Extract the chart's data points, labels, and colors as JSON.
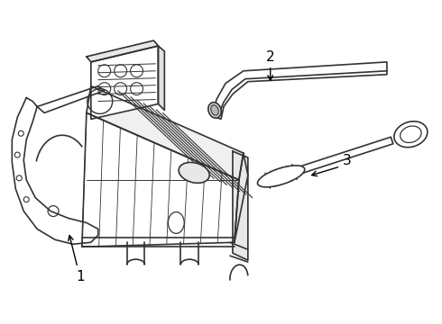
{
  "background_color": "#ffffff",
  "line_color": "#333333",
  "line_width": 1.2,
  "figsize": [
    4.9,
    3.6
  ],
  "dpi": 100
}
